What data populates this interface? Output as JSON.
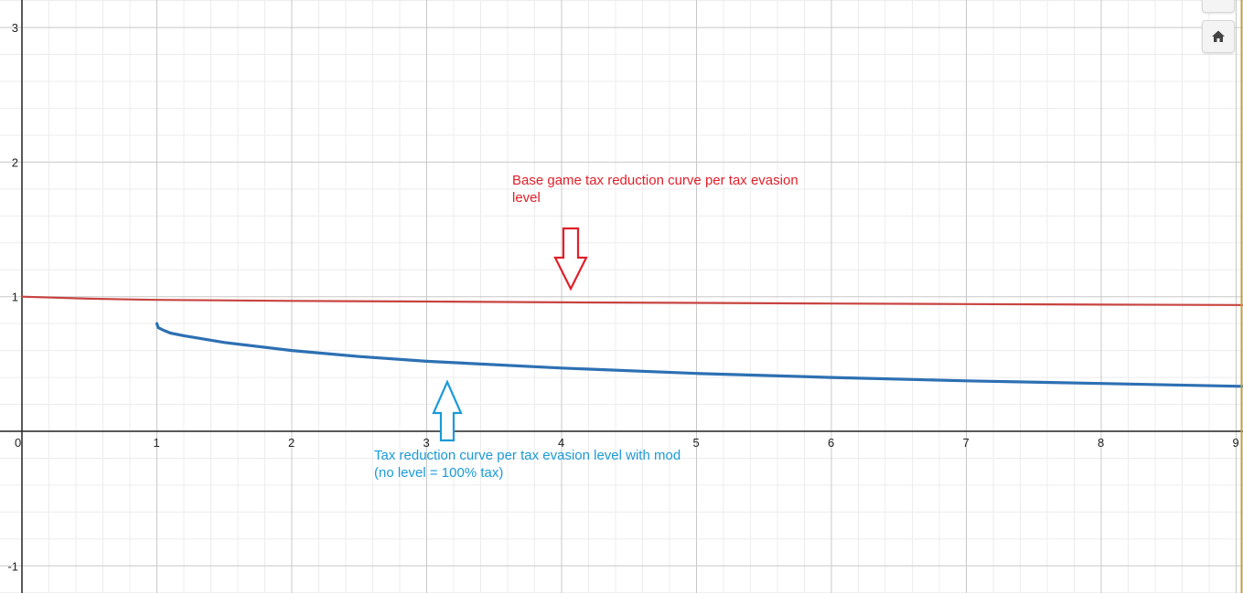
{
  "chart_data": {
    "type": "line",
    "title": "",
    "xlabel": "",
    "ylabel": "",
    "xlim": [
      0,
      9.08
    ],
    "ylim": [
      -1.2,
      3.2
    ],
    "grid": true,
    "x_ticks": [
      "0",
      "1",
      "2",
      "3",
      "4",
      "5",
      "6",
      "7",
      "8",
      "9"
    ],
    "y_ticks": [
      "3",
      "2",
      "1",
      "-1"
    ],
    "series": [
      {
        "color": "#c74440",
        "x": [
          0,
          0.5,
          1,
          2,
          3,
          4,
          5,
          6,
          7,
          8,
          9,
          9.08
        ],
        "y": [
          1.0,
          0.985,
          0.976,
          0.969,
          0.964,
          0.958,
          0.954,
          0.949,
          0.945,
          0.941,
          0.938,
          0.937
        ]
      },
      {
        "color": "#2d70b3",
        "x": [
          1,
          1.01,
          1.05,
          1.1,
          1.2,
          1.5,
          2,
          2.5,
          3,
          4,
          5,
          6,
          7,
          8,
          9,
          9.08
        ],
        "y": [
          0.8,
          0.77,
          0.75,
          0.73,
          0.71,
          0.66,
          0.6,
          0.555,
          0.52,
          0.47,
          0.43,
          0.4,
          0.375,
          0.355,
          0.335,
          0.333
        ]
      }
    ],
    "annotations": [
      {
        "text": "Base game tax reduction curve per tax evasion level",
        "color": "#e0202a",
        "arrow": "down"
      },
      {
        "text": "Tax reduction curve per tax evasion level with mod (no level = 100% tax)",
        "color": "#1c9ad6",
        "arrow": "up"
      }
    ]
  },
  "controls": {
    "home_icon": "home-icon"
  }
}
